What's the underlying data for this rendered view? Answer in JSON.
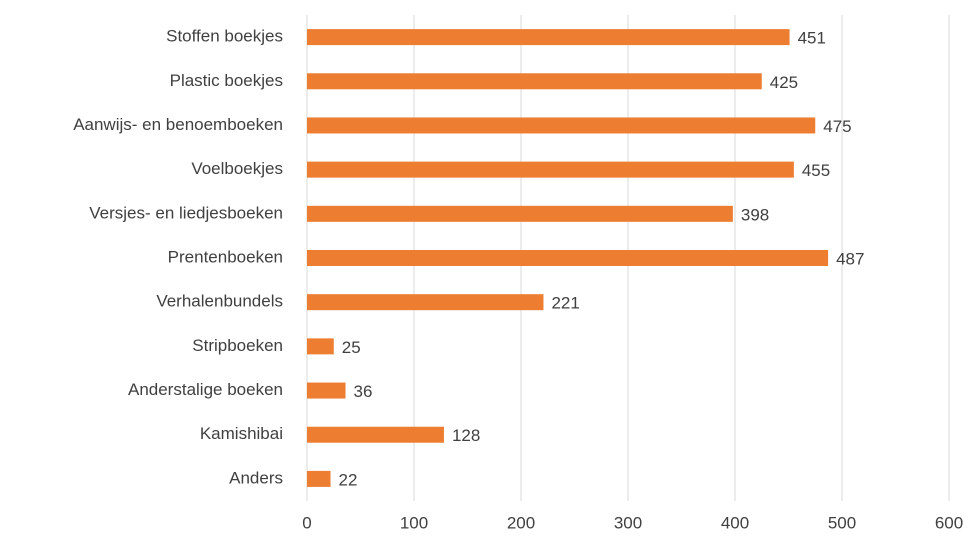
{
  "chart_data": {
    "type": "bar",
    "orientation": "horizontal",
    "categories": [
      "Stoffen boekjes",
      "Plastic boekjes",
      "Aanwijs- en benoemboeken",
      "Voelboekjes",
      "Versjes- en liedjesboeken",
      "Prentenboeken",
      "Verhalenbundels",
      "Stripboeken",
      "Anderstalige boeken",
      "Kamishibai",
      "Anders"
    ],
    "values": [
      451,
      425,
      475,
      455,
      398,
      487,
      221,
      25,
      36,
      128,
      22
    ],
    "color": "#ed7d31",
    "xlim": [
      0,
      600
    ],
    "xticks": [
      0,
      100,
      200,
      300,
      400,
      500,
      600
    ],
    "grid": true
  }
}
